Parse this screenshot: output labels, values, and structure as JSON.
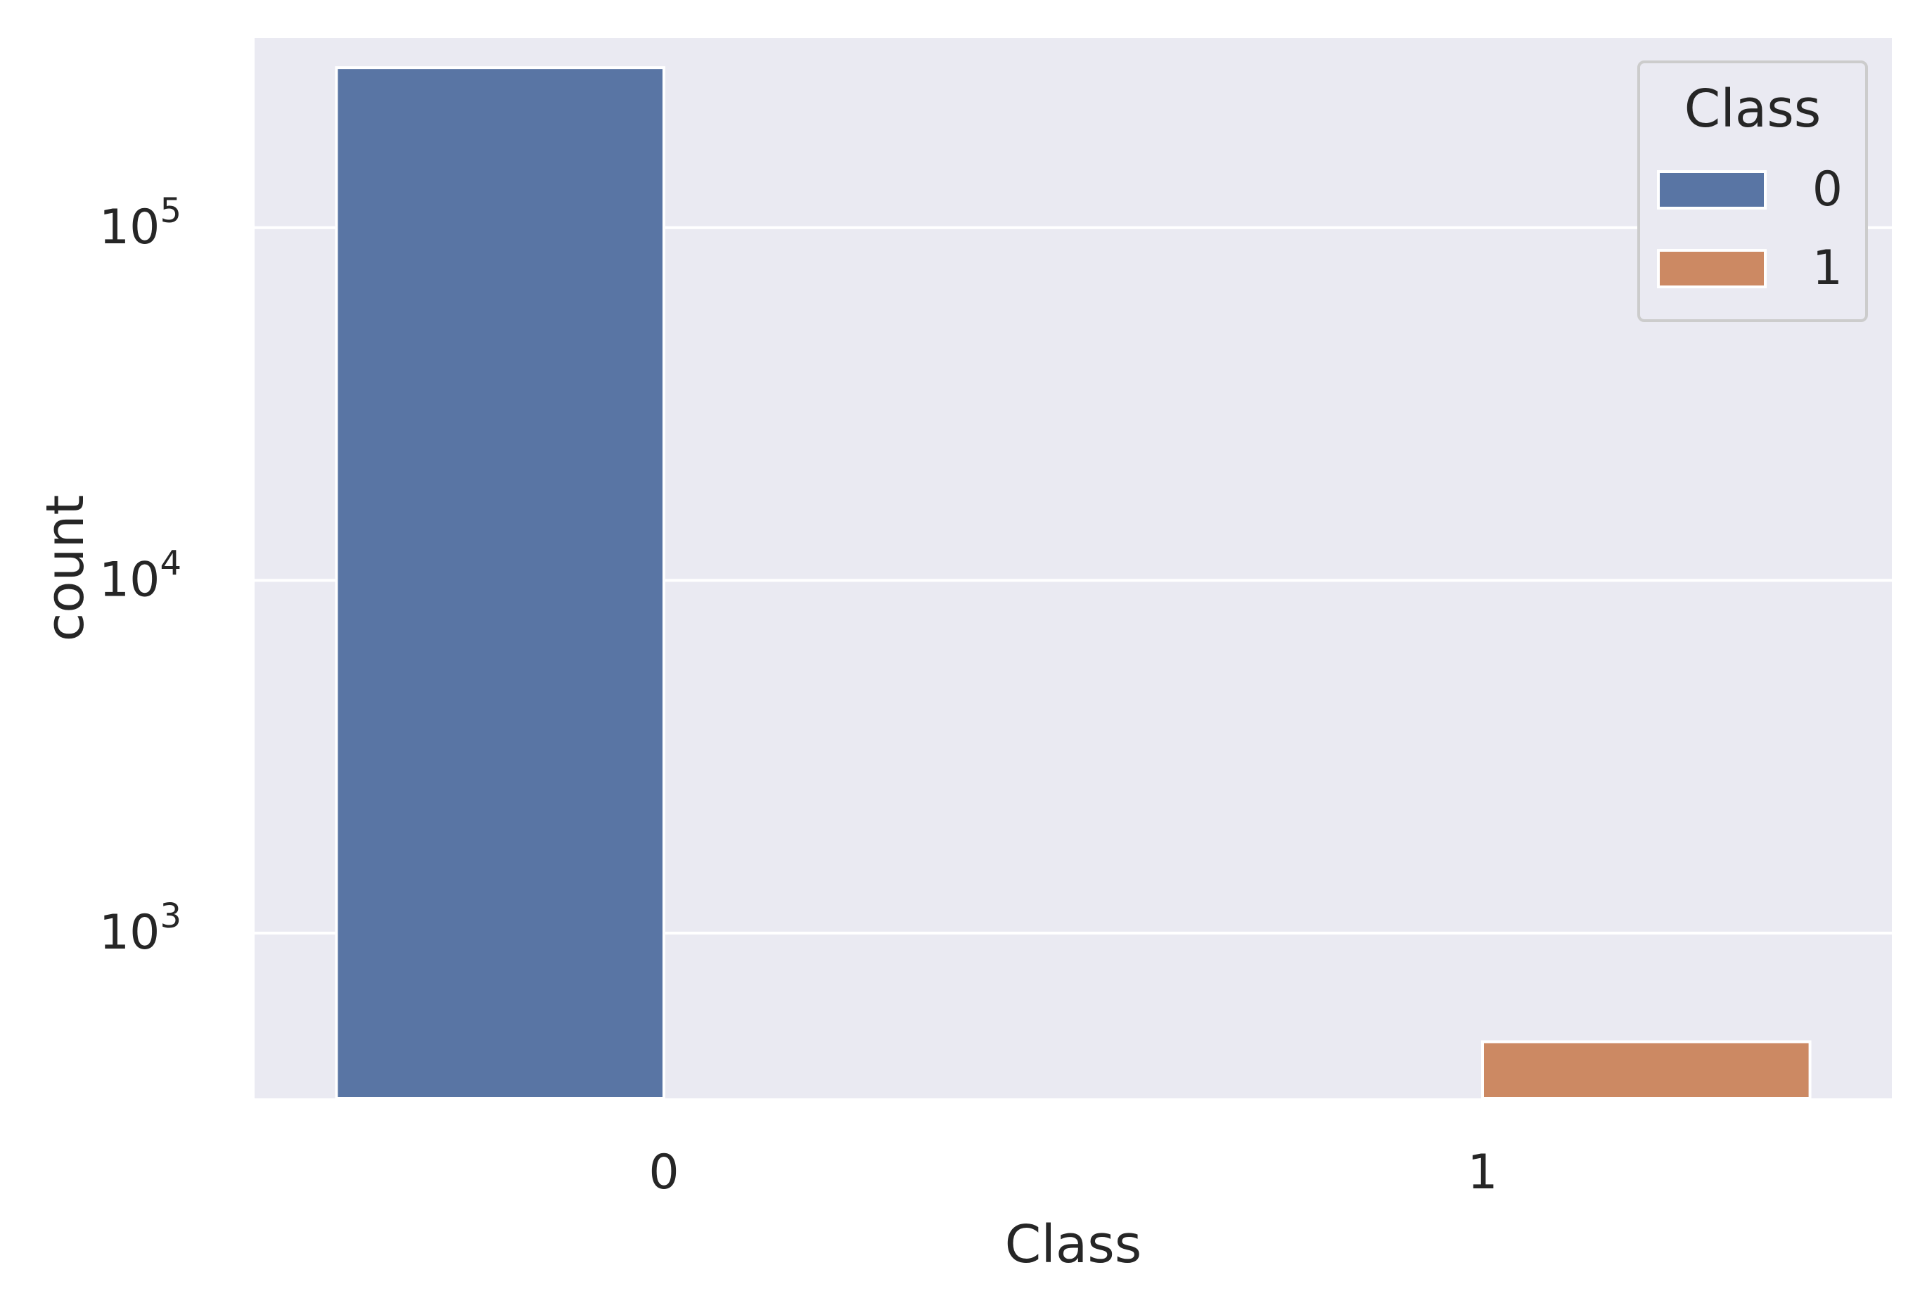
{
  "chart_data": {
    "type": "bar",
    "title": "",
    "xlabel": "Class",
    "ylabel": "count",
    "yscale": "log",
    "ylim": [
      340,
      345000
    ],
    "yticks": [
      {
        "value": 100000,
        "base": "10",
        "exp": "5"
      },
      {
        "value": 10000,
        "base": "10",
        "exp": "4"
      },
      {
        "value": 1000,
        "base": "10",
        "exp": "3"
      }
    ],
    "categories": [
      "0",
      "1"
    ],
    "series": [
      {
        "name": "0",
        "color": "#5975a4",
        "values": [
          284315,
          null
        ]
      },
      {
        "name": "1",
        "color": "#cc8963",
        "values": [
          null,
          492
        ]
      }
    ],
    "legend": {
      "title": "Class",
      "position": "top-right",
      "entries": [
        {
          "label": "0",
          "color": "#5975a4"
        },
        {
          "label": "1",
          "color": "#cc8963"
        }
      ]
    },
    "grid": true,
    "style": {
      "background": "#eaeaf2",
      "grid_color": "#ffffff"
    }
  }
}
